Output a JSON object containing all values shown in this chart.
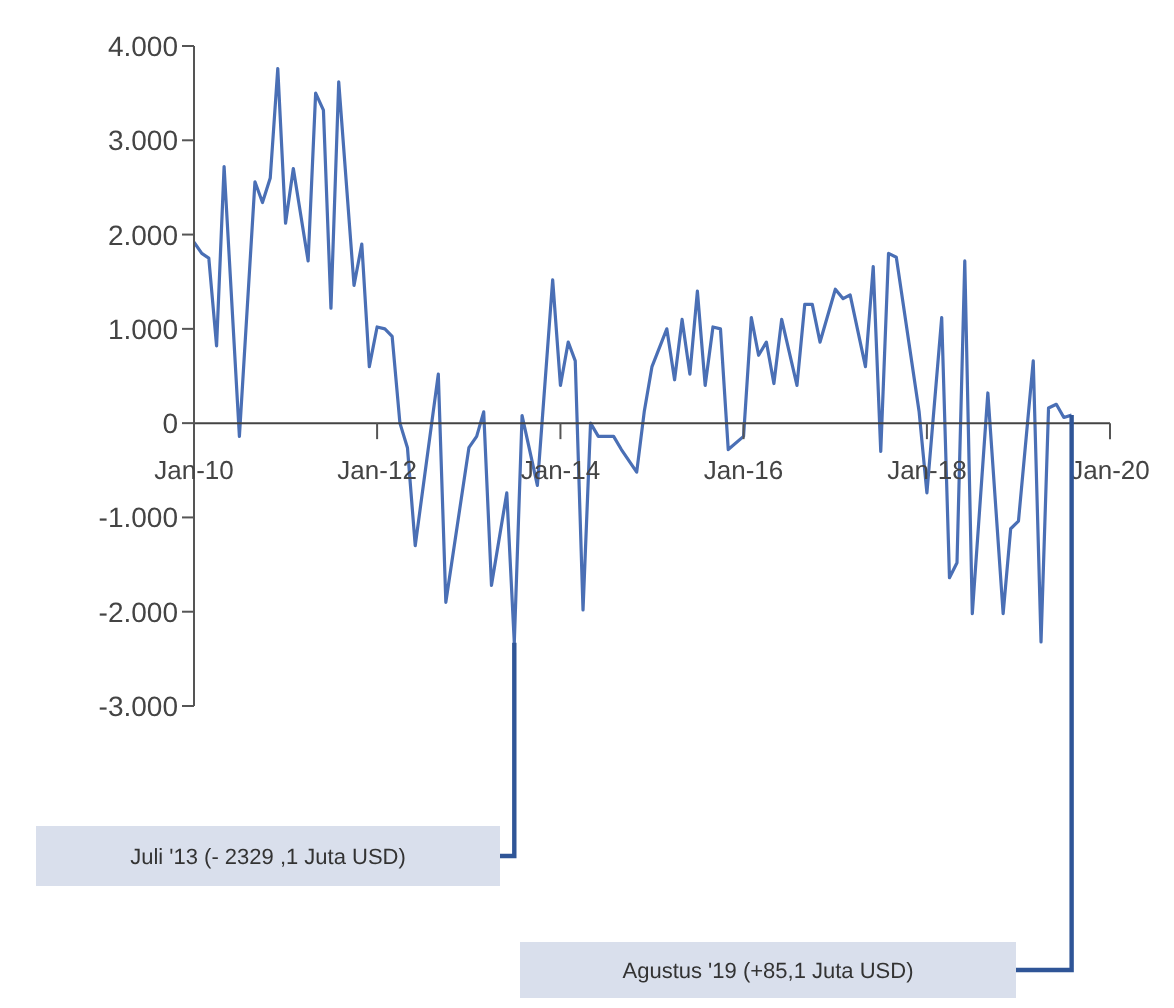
{
  "chart_data": {
    "type": "line",
    "x": [
      "2010-01",
      "2010-02",
      "2010-03",
      "2010-04",
      "2010-05",
      "2010-07",
      "2010-09",
      "2010-10",
      "2010-11",
      "2010-12",
      "2011-01",
      "2011-02",
      "2011-04",
      "2011-05",
      "2011-06",
      "2011-07",
      "2011-08",
      "2011-10",
      "2011-11",
      "2011-12",
      "2012-01",
      "2012-02",
      "2012-03",
      "2012-04",
      "2012-05",
      "2012-06",
      "2012-09",
      "2012-10",
      "2013-01",
      "2013-02",
      "2013-03",
      "2013-04",
      "2013-06",
      "2013-07",
      "2013-08",
      "2013-10",
      "2013-12",
      "2014-01",
      "2014-02",
      "2014-03",
      "2014-04",
      "2014-05",
      "2014-06",
      "2014-08",
      "2014-09",
      "2014-11",
      "2014-12",
      "2015-01",
      "2015-03",
      "2015-04",
      "2015-05",
      "2015-06",
      "2015-07",
      "2015-08",
      "2015-09",
      "2015-10",
      "2015-11",
      "2016-01",
      "2016-02",
      "2016-03",
      "2016-04",
      "2016-05",
      "2016-06",
      "2016-08",
      "2016-09",
      "2016-10",
      "2016-11",
      "2017-01",
      "2017-02",
      "2017-03",
      "2017-05",
      "2017-06",
      "2017-07",
      "2017-08",
      "2017-09",
      "2017-12",
      "2018-01",
      "2018-03",
      "2018-04",
      "2018-05",
      "2018-06",
      "2018-07",
      "2018-09",
      "2018-11",
      "2018-12",
      "2019-01",
      "2019-03",
      "2019-04",
      "2019-05",
      "2019-06",
      "2019-07",
      "2019-08"
    ],
    "series": [
      {
        "color": "#4a6fb5",
        "values": [
          1920,
          1800,
          1750,
          820,
          2720,
          -140,
          2560,
          2340,
          2600,
          3760,
          2120,
          2700,
          1720,
          3500,
          3320,
          1220,
          3620,
          1460,
          1900,
          600,
          1020,
          1000,
          920,
          0,
          -260,
          -1300,
          520,
          -1900,
          -260,
          -140,
          120,
          -1720,
          -740,
          -2329.1,
          80,
          -660,
          1520,
          400,
          860,
          660,
          -1980,
          0,
          -140,
          -140,
          -280,
          -520,
          120,
          600,
          1000,
          460,
          1100,
          520,
          1400,
          400,
          1020,
          1000,
          -280,
          -140,
          1120,
          720,
          860,
          420,
          1100,
          400,
          1260,
          1260,
          860,
          1420,
          1320,
          1360,
          600,
          1660,
          -300,
          1800,
          1760,
          120,
          -740,
          1120,
          -1640,
          -1480,
          1720,
          -2020,
          320,
          -2020,
          -1120,
          -1040,
          660,
          -2320,
          160,
          200,
          60,
          85.1
        ]
      }
    ],
    "xlim": [
      "2010-01",
      "2020-01"
    ],
    "xticks": [
      {
        "value": "2010-01",
        "label": "Jan-10"
      },
      {
        "value": "2012-01",
        "label": "Jan-12"
      },
      {
        "value": "2014-01",
        "label": "Jan-14"
      },
      {
        "value": "2016-01",
        "label": "Jan-16"
      },
      {
        "value": "2018-01",
        "label": "Jan-18"
      },
      {
        "value": "2020-01",
        "label": "Jan-20"
      }
    ],
    "ylim": [
      -3000,
      4000
    ],
    "yticks": [
      {
        "value": -3000,
        "label": "-3.000"
      },
      {
        "value": -2000,
        "label": "-2.000"
      },
      {
        "value": -1000,
        "label": "-1.000"
      },
      {
        "value": 0,
        "label": "0"
      },
      {
        "value": 1000,
        "label": "1.000"
      },
      {
        "value": 2000,
        "label": "2.000"
      },
      {
        "value": 3000,
        "label": "3.000"
      },
      {
        "value": 4000,
        "label": "4.000"
      }
    ],
    "grid": false,
    "legend": false,
    "marker": "none",
    "line_style": "solid",
    "annotations": [
      "Juli '13  (- 2329 ,1 Juta USD)",
      "Agustus '19 (+85,1 Juta USD)"
    ]
  }
}
